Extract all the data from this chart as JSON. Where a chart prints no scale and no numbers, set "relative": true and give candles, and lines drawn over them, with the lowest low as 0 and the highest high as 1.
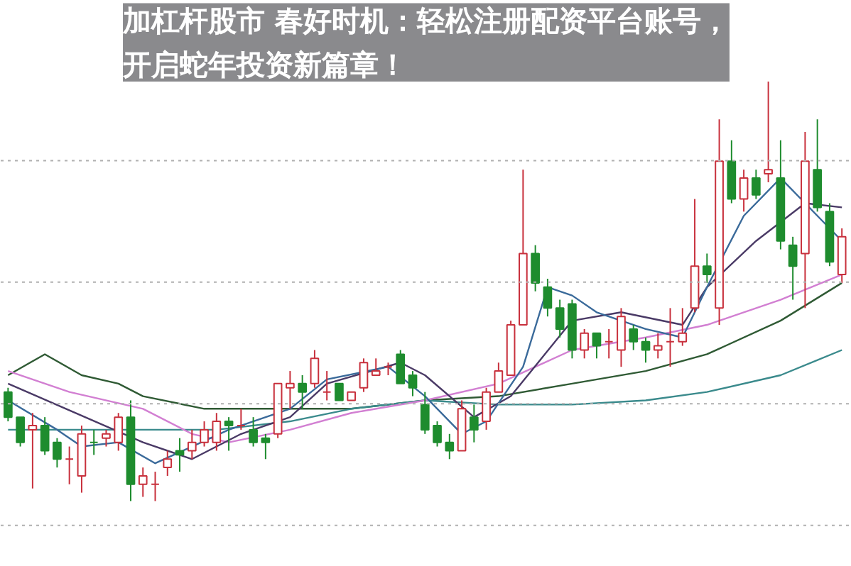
{
  "chart_data": {
    "type": "candlestick",
    "relative": true,
    "title": "加杠杆股市 春好时机：轻松注册配资平台账号，开启蛇年投资新篇章！",
    "grid": "y",
    "categories": [
      null,
      null,
      null,
      null,
      null,
      null,
      null,
      null,
      null,
      null,
      null,
      null,
      null,
      null,
      null,
      null,
      null,
      null,
      null,
      null,
      null,
      null,
      null,
      null,
      null,
      null,
      null,
      null,
      null,
      null,
      null,
      null,
      null,
      null,
      null,
      null,
      null,
      null,
      null,
      null,
      null,
      null,
      null,
      null,
      null,
      null,
      null,
      null,
      null,
      null,
      null,
      null,
      null,
      null,
      null,
      null,
      null,
      null,
      null,
      null,
      null,
      null,
      null,
      null,
      null,
      null,
      null,
      null,
      null
    ],
    "ohlc": [
      [
        0.26,
        0.27,
        0.19,
        0.2
      ],
      [
        0.2,
        0.2,
        0.13,
        0.14
      ],
      [
        0.17,
        0.21,
        0.03,
        0.18
      ],
      [
        0.18,
        0.2,
        0.11,
        0.12
      ],
      [
        0.14,
        0.15,
        0.08,
        0.1
      ],
      [
        0.1,
        0.13,
        0.04,
        0.1
      ],
      [
        0.06,
        0.18,
        0.02,
        0.16
      ],
      [
        0.14,
        0.17,
        0.11,
        0.14
      ],
      [
        0.15,
        0.17,
        0.13,
        0.16
      ],
      [
        0.14,
        0.21,
        0.12,
        0.2
      ],
      [
        0.2,
        0.24,
        0,
        0.04
      ],
      [
        0.04,
        0.08,
        0.01,
        0.06
      ],
      [
        0.04,
        0.07,
        0,
        0.04
      ],
      [
        0.08,
        0.12,
        0.06,
        0.1
      ],
      [
        0.12,
        0.15,
        0.07,
        0.11
      ],
      [
        0.12,
        0.17,
        0.1,
        0.14
      ],
      [
        0.14,
        0.19,
        0.13,
        0.17
      ],
      [
        0.14,
        0.21,
        0.12,
        0.19
      ],
      [
        0.19,
        0.2,
        0.12,
        0.18
      ],
      [
        0.18,
        0.22,
        0.17,
        0.18
      ],
      [
        0.17,
        0.2,
        0.13,
        0.14
      ],
      [
        0.15,
        0.16,
        0.1,
        0.14
      ],
      [
        0.16,
        0.28,
        0.15,
        0.28
      ],
      [
        0.27,
        0.31,
        0.22,
        0.28
      ],
      [
        0.28,
        0.3,
        0.22,
        0.26
      ],
      [
        0.28,
        0.36,
        0.27,
        0.34
      ],
      [
        0.26,
        0.31,
        0.24,
        0.26
      ],
      [
        0.28,
        0.28,
        0.24,
        0.24
      ],
      [
        0.24,
        0.26,
        0.24,
        0.26
      ],
      [
        0.27,
        0.34,
        0.26,
        0.33
      ],
      [
        0.3,
        0.34,
        0.3,
        0.31
      ],
      [
        0.32,
        0.33,
        0.3,
        0.32
      ],
      [
        0.35,
        0.36,
        0.28,
        0.28
      ],
      [
        0.3,
        0.31,
        0.25,
        0.27
      ],
      [
        0.23,
        0.26,
        0.16,
        0.17
      ],
      [
        0.18,
        0.19,
        0.13,
        0.14
      ],
      [
        0.14,
        0.16,
        0.1,
        0.12
      ],
      [
        0.12,
        0.24,
        0.12,
        0.22
      ],
      [
        0.2,
        0.23,
        0.14,
        0.17
      ],
      [
        0.19,
        0.27,
        0.17,
        0.26
      ],
      [
        0.26,
        0.33,
        0.26,
        0.31
      ],
      [
        0.3,
        0.43,
        0.3,
        0.42
      ],
      [
        0.42,
        0.79,
        0.42,
        0.59
      ],
      [
        0.59,
        0.61,
        0.5,
        0.52
      ],
      [
        0.51,
        0.53,
        0.44,
        0.46
      ],
      [
        0.46,
        0.48,
        0.39,
        0.41
      ],
      [
        0.47,
        0.48,
        0.34,
        0.36
      ],
      [
        0.36,
        0.41,
        0.34,
        0.4
      ],
      [
        0.4,
        0.4,
        0.34,
        0.37
      ],
      [
        0.38,
        0.41,
        0.34,
        0.38
      ],
      [
        0.36,
        0.46,
        0.32,
        0.44
      ],
      [
        0.41,
        0.42,
        0.36,
        0.38
      ],
      [
        0.38,
        0.39,
        0.33,
        0.36
      ],
      [
        0.36,
        0.4,
        0.34,
        0.37
      ],
      [
        0.38,
        0.46,
        0.32,
        0.38
      ],
      [
        0.38,
        0.46,
        0.37,
        0.4
      ],
      [
        0.46,
        0.72,
        0.45,
        0.56
      ],
      [
        0.56,
        0.59,
        0.52,
        0.54
      ],
      [
        0.46,
        0.91,
        0.42,
        0.81
      ],
      [
        0.81,
        0.86,
        0.71,
        0.72
      ],
      [
        0.72,
        0.79,
        0.69,
        0.77
      ],
      [
        0.77,
        0.79,
        0.72,
        0.73
      ],
      [
        0.78,
        1,
        0.76,
        0.79
      ],
      [
        0.77,
        0.86,
        0.6,
        0.62
      ],
      [
        0.61,
        0.63,
        0.48,
        0.56
      ],
      [
        0.59,
        0.88,
        0.46,
        0.81
      ],
      [
        0.79,
        0.91,
        0.69,
        0.7
      ],
      [
        0.69,
        0.71,
        0.56,
        0.57
      ],
      [
        0.54,
        0.65,
        0.52,
        0.63
      ]
    ],
    "colors": [
      "#1e8c2e",
      "#1e8c2e",
      "#c8303c",
      "#1e8c2e",
      "#1e8c2e",
      "#c8303c",
      "#c8303c",
      "#1e8c2e",
      "#c8303c",
      "#c8303c",
      "#1e8c2e",
      "#c8303c",
      "#c8303c",
      "#c8303c",
      "#1e8c2e",
      "#c8303c",
      "#c8303c",
      "#c8303c",
      "#1e8c2e",
      "#c8303c",
      "#1e8c2e",
      "#1e8c2e",
      "#c8303c",
      "#c8303c",
      "#1e8c2e",
      "#c8303c",
      "#c8303c",
      "#1e8c2e",
      "#c8303c",
      "#c8303c",
      "#c8303c",
      "#c8303c",
      "#1e8c2e",
      "#1e8c2e",
      "#1e8c2e",
      "#1e8c2e",
      "#1e8c2e",
      "#c8303c",
      "#1e8c2e",
      "#c8303c",
      "#c8303c",
      "#c8303c",
      "#c8303c",
      "#1e8c2e",
      "#1e8c2e",
      "#1e8c2e",
      "#1e8c2e",
      "#c8303c",
      "#1e8c2e",
      "#c8303c",
      "#c8303c",
      "#1e8c2e",
      "#1e8c2e",
      "#c8303c",
      "#c8303c",
      "#c8303c",
      "#c8303c",
      "#1e8c2e",
      "#c8303c",
      "#1e8c2e",
      "#c8303c",
      "#1e8c2e",
      "#c8303c",
      "#1e8c2e",
      "#1e8c2e",
      "#c8303c",
      "#1e8c2e",
      "#1e8c2e",
      "#c8303c"
    ],
    "series": [
      {
        "type": "line",
        "color": "#2f5a34",
        "values": [
          0.3,
          null,
          null,
          0.35,
          null,
          null,
          0.3,
          null,
          null,
          0.28,
          null,
          0.25,
          null,
          null,
          null,
          null,
          0.22,
          null,
          null,
          null,
          null,
          null,
          null,
          0.22,
          null,
          null,
          null,
          null,
          0.22,
          null,
          null,
          null,
          null,
          null,
          0.24,
          null,
          null,
          null,
          null,
          null,
          0.25,
          null,
          null,
          null,
          null,
          null,
          0.28,
          null,
          null,
          null,
          null,
          null,
          0.31,
          null,
          null,
          null,
          null,
          0.35,
          null,
          null,
          null,
          null,
          null,
          0.43,
          null,
          null,
          null,
          null,
          0.52
        ]
      },
      {
        "type": "line",
        "color": "#3a8a8c",
        "values": [
          0.17,
          null,
          null,
          null,
          null,
          0.17,
          null,
          null,
          null,
          null,
          null,
          0.17,
          null,
          null,
          null,
          null,
          null,
          0.17,
          null,
          null,
          null,
          null,
          null,
          0.19,
          null,
          null,
          null,
          null,
          0.22,
          null,
          null,
          null,
          null,
          null,
          0.24,
          null,
          null,
          null,
          null,
          null,
          0.23,
          null,
          null,
          null,
          null,
          null,
          0.23,
          null,
          null,
          null,
          null,
          null,
          0.24,
          null,
          null,
          null,
          null,
          0.26,
          null,
          null,
          null,
          null,
          null,
          0.3,
          null,
          null,
          null,
          null,
          0.36
        ]
      },
      {
        "type": "line",
        "color": "#d27fd2",
        "values": [
          0.31,
          null,
          null,
          null,
          null,
          0.26,
          null,
          null,
          null,
          null,
          null,
          0.22,
          null,
          null,
          null,
          0.16,
          null,
          null,
          0.14,
          null,
          null,
          null,
          null,
          0.17,
          null,
          null,
          null,
          null,
          0.21,
          null,
          null,
          null,
          null,
          null,
          0.24,
          null,
          null,
          null,
          null,
          null,
          0.28,
          null,
          null,
          null,
          null,
          null,
          0.36,
          null,
          null,
          null,
          null,
          null,
          0.39,
          null,
          null,
          null,
          null,
          0.42,
          null,
          null,
          null,
          null,
          null,
          0.48,
          null,
          null,
          null,
          null,
          0.54
        ]
      },
      {
        "type": "line",
        "color": "#4a3a66",
        "values": [
          0.28,
          null,
          null,
          null,
          null,
          null,
          null,
          null,
          null,
          null,
          null,
          0.14,
          null,
          null,
          null,
          0.1,
          null,
          null,
          null,
          0.16,
          null,
          null,
          null,
          0.2,
          null,
          null,
          0.28,
          null,
          null,
          null,
          null,
          null,
          0.33,
          null,
          0.3,
          null,
          null,
          null,
          0.2,
          null,
          null,
          0.25,
          null,
          null,
          null,
          null,
          0.43,
          null,
          null,
          null,
          0.45,
          null,
          null,
          null,
          null,
          0.42,
          null,
          0.51,
          null,
          null,
          null,
          0.62,
          null,
          null,
          null,
          0.71,
          null,
          null,
          0.7
        ]
      },
      {
        "type": "line",
        "color": "#3a6a9a",
        "values": [
          0.24,
          null,
          null,
          null,
          0.17,
          null,
          0.13,
          null,
          null,
          0.14,
          null,
          null,
          0.09,
          null,
          null,
          0.13,
          null,
          null,
          0.17,
          null,
          null,
          null,
          null,
          0.22,
          null,
          null,
          0.29,
          null,
          null,
          null,
          null,
          0.32,
          null,
          null,
          0.25,
          null,
          null,
          0.16,
          null,
          0.19,
          null,
          null,
          0.32,
          null,
          0.51,
          null,
          0.49,
          null,
          0.45,
          null,
          null,
          null,
          0.41,
          null,
          null,
          0.39,
          null,
          0.51,
          null,
          null,
          0.68,
          null,
          null,
          0.77,
          null,
          null,
          0.68,
          null,
          0.62
        ]
      }
    ]
  }
}
